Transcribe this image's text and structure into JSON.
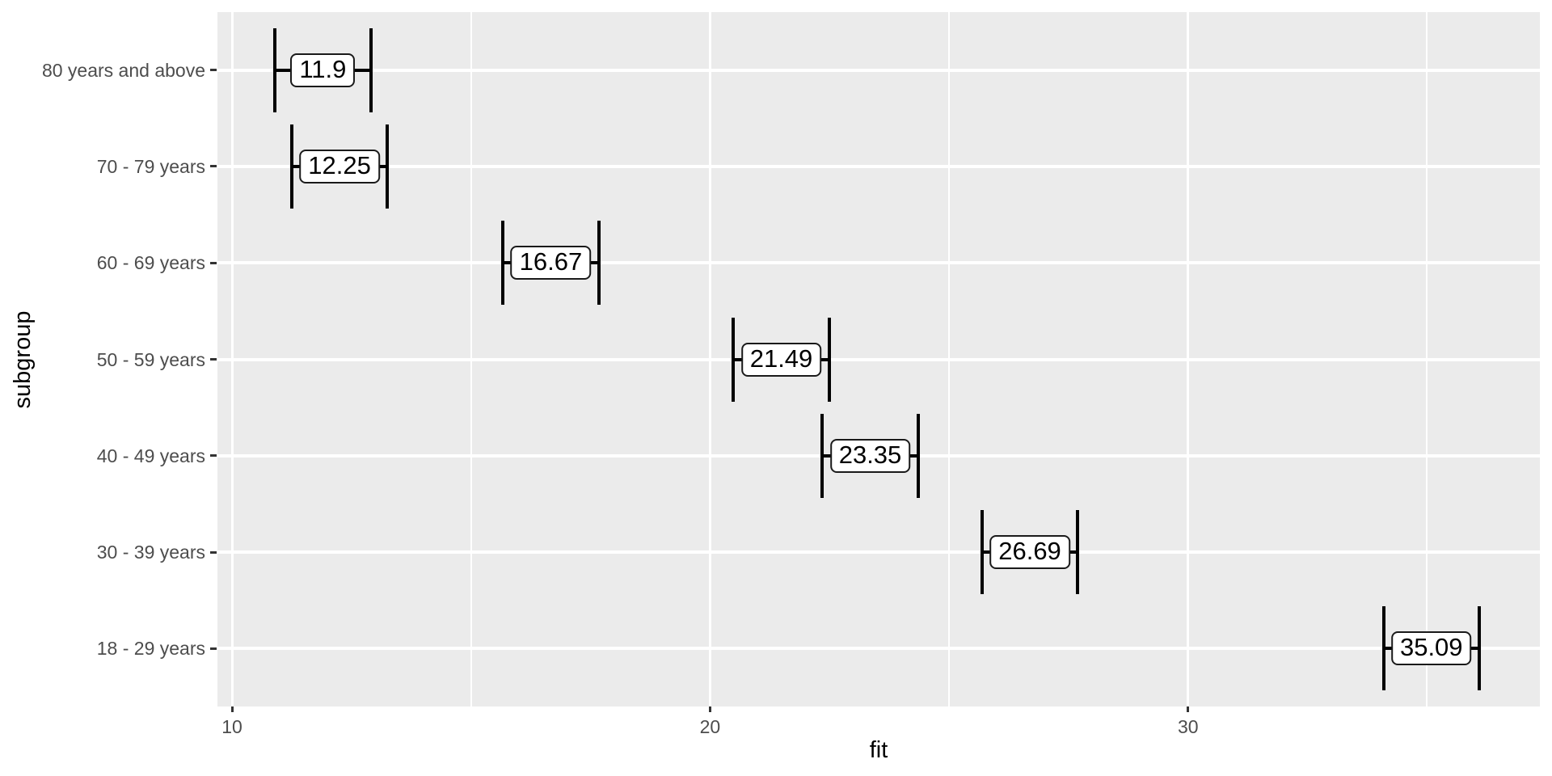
{
  "chart_data": {
    "type": "errorbar",
    "orientation": "horizontal",
    "title": "",
    "xlabel": "fit",
    "ylabel": "subgroup",
    "categories": [
      "80 years and above",
      "70 - 79 years",
      "60 - 69 years",
      "50 - 59 years",
      "40 - 49 years",
      "30 - 39 years",
      "18 - 29 years"
    ],
    "series": [
      {
        "name": "fit",
        "values": [
          11.9,
          12.25,
          16.67,
          21.49,
          23.35,
          26.69,
          35.09
        ],
        "lower": [
          10.9,
          11.25,
          15.67,
          20.49,
          22.35,
          25.69,
          34.09
        ],
        "upper": [
          12.9,
          13.25,
          17.67,
          22.49,
          24.35,
          27.69,
          36.09
        ]
      }
    ],
    "labels": [
      "11.9",
      "12.25",
      "16.67",
      "21.49",
      "23.35",
      "26.69",
      "35.09"
    ],
    "x_ticks": [
      "10",
      "20",
      "30"
    ],
    "x_tick_values": [
      10,
      20,
      30
    ],
    "x_minor_tick_values": [
      15,
      25,
      35
    ],
    "xlim": [
      9.695,
      37.36
    ],
    "grid": "major+minor, white on grey panel",
    "legend": "none",
    "colors": {
      "panel_background": "#EBEBEB",
      "gridline": "#FFFFFF",
      "axis_text": "#4D4D4D",
      "axis_title": "#000000",
      "errorbar": "#000000",
      "label_fill": "#FFFFFF",
      "label_border": "#1A1A1A",
      "tick_mark": "#333333"
    }
  }
}
